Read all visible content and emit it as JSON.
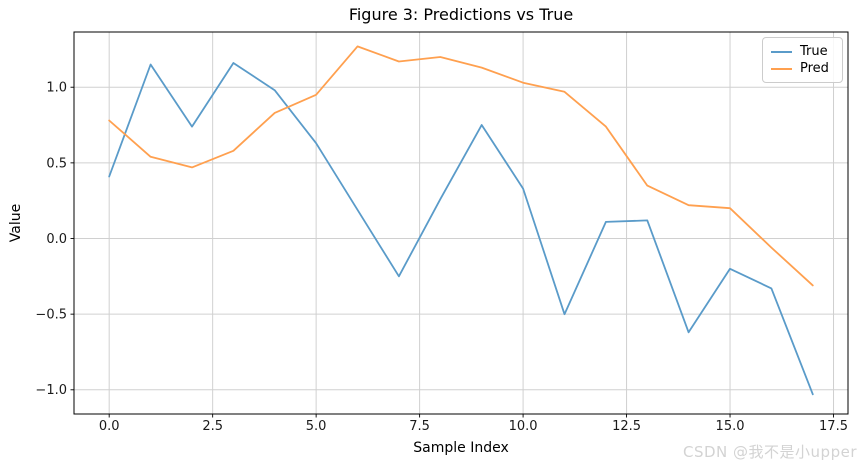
{
  "figure": {
    "watermark": "CSDN @我不是小upper"
  },
  "colors": {
    "background": "#ffffff",
    "grid": "#d0d0d0",
    "spine": "#000000",
    "tick_text": "#1a1a1a",
    "true_line": "#5a9bc9",
    "pred_line": "#ffa04f",
    "watermark": "#d3d3d3"
  },
  "chart_data": {
    "type": "line",
    "title": "Figure 3: Predictions vs True",
    "xlabel": "Sample Index",
    "ylabel": "Value",
    "grid": true,
    "legend_position": "upper right",
    "xlim": [
      -0.85,
      17.85
    ],
    "ylim": [
      -1.16,
      1.365
    ],
    "xticks": {
      "values": [
        0,
        2.5,
        5,
        7.5,
        10,
        12.5,
        15,
        17.5
      ],
      "labels": [
        "0.0",
        "2.5",
        "5.0",
        "7.5",
        "10.0",
        "12.5",
        "15.0",
        "17.5"
      ]
    },
    "yticks": {
      "values": [
        -1.0,
        -0.5,
        0.0,
        0.5,
        1.0
      ],
      "labels": [
        "−1.0",
        "−0.5",
        "0.0",
        "0.5",
        "1.0"
      ]
    },
    "x": [
      0,
      1,
      2,
      3,
      4,
      5,
      6,
      7,
      8,
      9,
      10,
      11,
      12,
      13,
      14,
      15,
      16,
      17
    ],
    "series": [
      {
        "name": "True",
        "color": "#5a9bc9",
        "values": [
          0.41,
          1.15,
          0.74,
          1.16,
          0.98,
          0.63,
          0.19,
          -0.25,
          0.26,
          0.75,
          0.33,
          -0.5,
          0.11,
          0.12,
          -0.62,
          -0.2,
          -0.33,
          -1.03
        ]
      },
      {
        "name": "Pred",
        "color": "#ffa04f",
        "values": [
          0.78,
          0.54,
          0.47,
          0.58,
          0.83,
          0.95,
          1.27,
          1.17,
          1.2,
          1.13,
          1.03,
          0.97,
          0.74,
          0.35,
          0.22,
          0.2,
          -0.06,
          -0.31
        ]
      }
    ]
  }
}
